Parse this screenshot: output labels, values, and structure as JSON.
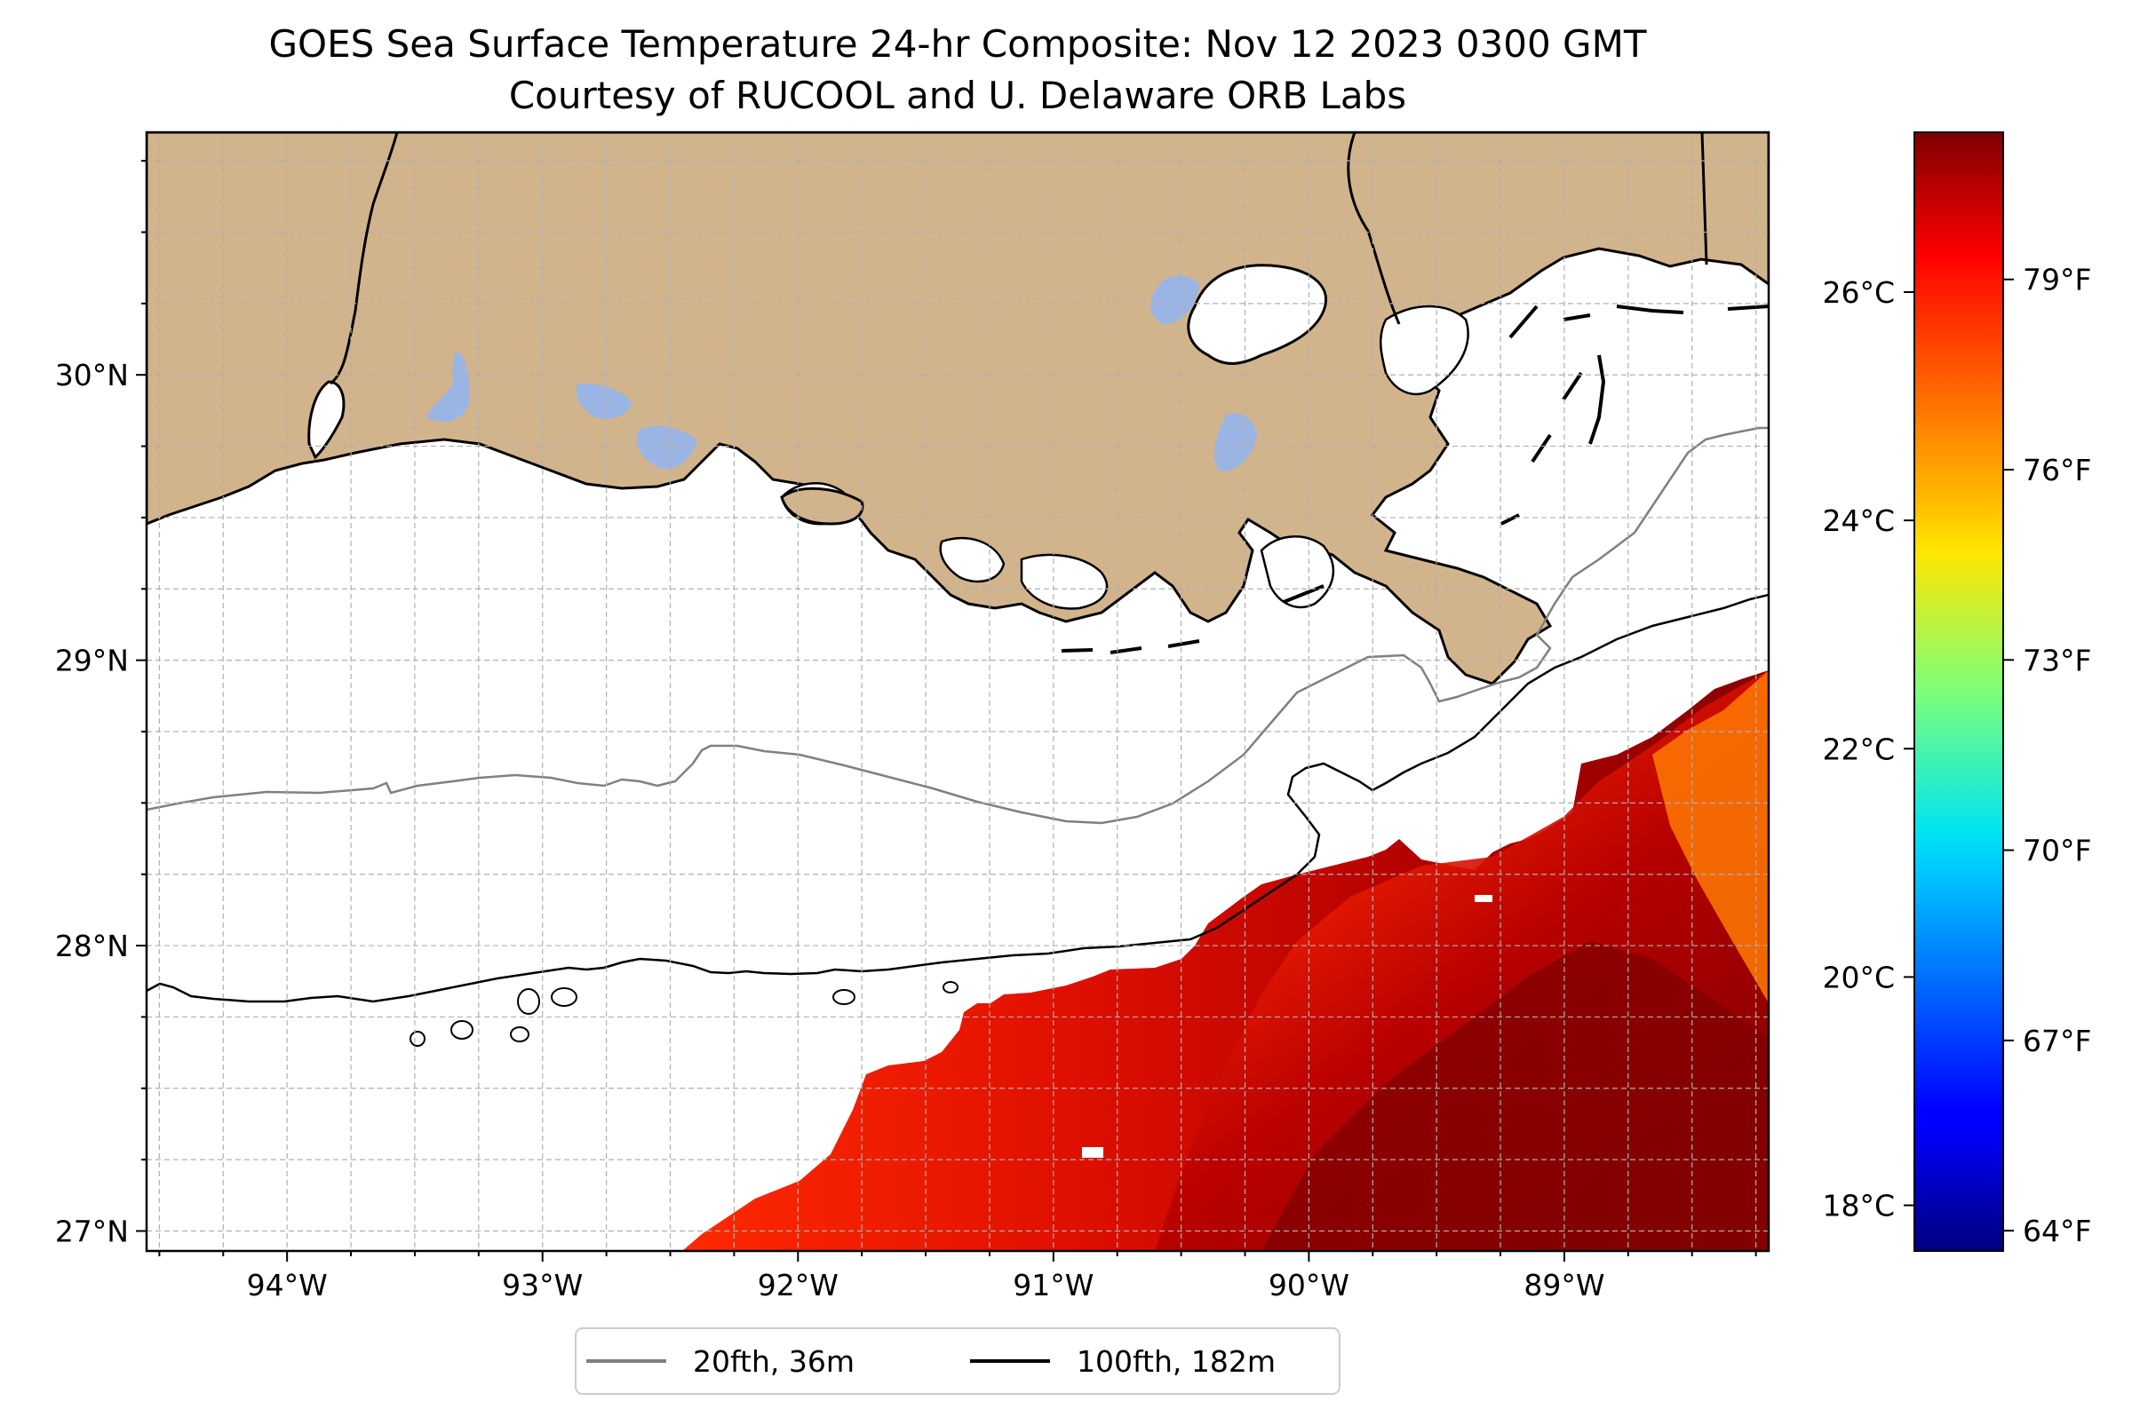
{
  "title": {
    "line1": "GOES Sea Surface Temperature 24-hr Composite: Nov 12 2023 0300 GMT",
    "line2": "Courtesy of RUCOOL and U. Delaware ORB Labs"
  },
  "map": {
    "lon_range": [
      -94.55,
      -88.2
    ],
    "lat_range": [
      26.93,
      30.85
    ],
    "lon_ticks": [
      {
        "value": -94,
        "label": "94°W"
      },
      {
        "value": -93,
        "label": "93°W"
      },
      {
        "value": -92,
        "label": "92°W"
      },
      {
        "value": -91,
        "label": "91°W"
      },
      {
        "value": -90,
        "label": "90°W"
      },
      {
        "value": -89,
        "label": "89°W"
      }
    ],
    "lat_ticks": [
      {
        "value": 27,
        "label": "27°N"
      },
      {
        "value": 28,
        "label": "28°N"
      },
      {
        "value": 29,
        "label": "29°N"
      },
      {
        "value": 30,
        "label": "30°N"
      }
    ],
    "gridlines": true,
    "colors": {
      "land": "#d2b48c",
      "lakes": "#9ab5e4",
      "ocean_nodata": "#ffffff",
      "isobath_20": "#808080",
      "isobath_100": "#000000"
    }
  },
  "legend": {
    "items": [
      {
        "label": "20fth, 36m",
        "color": "#808080"
      },
      {
        "label": "100fth, 182m",
        "color": "#000000"
      }
    ],
    "placement": "bottom-center"
  },
  "colorbar": {
    "colormap": "jet",
    "c_range": [
      17.6,
      27.4
    ],
    "celsius_ticks": [
      {
        "value": 18,
        "label": "18°C"
      },
      {
        "value": 20,
        "label": "20°C"
      },
      {
        "value": 22,
        "label": "22°C"
      },
      {
        "value": 24,
        "label": "24°C"
      },
      {
        "value": 26,
        "label": "26°C"
      }
    ],
    "fahrenheit_ticks": [
      {
        "value": 64,
        "label": "64°F"
      },
      {
        "value": 67,
        "label": "67°F"
      },
      {
        "value": 70,
        "label": "70°F"
      },
      {
        "value": 73,
        "label": "73°F"
      },
      {
        "value": 76,
        "label": "76°F"
      },
      {
        "value": 79,
        "label": "79°F"
      }
    ]
  }
}
